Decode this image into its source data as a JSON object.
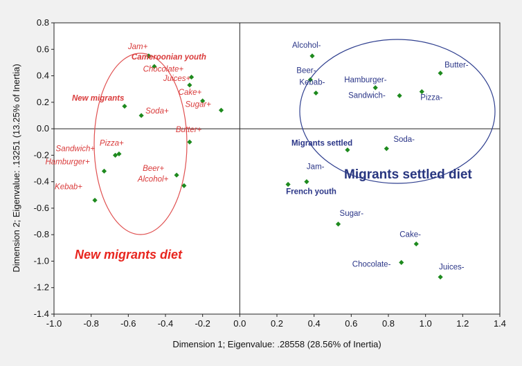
{
  "chart_data": {
    "type": "scatter",
    "xlabel": "Dimension 1; Eigenvalue: .28558 (28.56% of Inertia)",
    "ylabel": "Dimension 2; Eigenvalue: .13251 (13.25% of Inertia)",
    "xlim": [
      -1.0,
      1.4
    ],
    "ylim": [
      -1.4,
      0.8
    ],
    "xticks": [
      "-1.0",
      "-0.8",
      "-0.6",
      "-0.4",
      "-0.2",
      "0.0",
      "0.2",
      "0.4",
      "0.6",
      "0.8",
      "1.0",
      "1.2",
      "1.4"
    ],
    "yticks": [
      "0.8",
      "0.6",
      "0.4",
      "0.2",
      "0.0",
      "-0.2",
      "-0.4",
      "-0.6",
      "-0.8",
      "-1.0",
      "-1.2",
      "-1.4"
    ],
    "grid": false,
    "marker_color": "#1e8a1e",
    "new_color": "#d93a3a",
    "settled_color": "#2a3587",
    "points": [
      {
        "label": "Jam+",
        "x": -0.49,
        "y": 0.55,
        "group": "new",
        "bold": false
      },
      {
        "label": "Cameroonian youth",
        "x": -0.46,
        "y": 0.47,
        "group": "new",
        "bold": true
      },
      {
        "label": "Chocolate+",
        "x": -0.26,
        "y": 0.39,
        "group": "new",
        "bold": false
      },
      {
        "label": "New migrants",
        "x": -0.62,
        "y": 0.17,
        "group": "new",
        "bold": true
      },
      {
        "label": "Juices+",
        "x": -0.27,
        "y": 0.33,
        "group": "new",
        "bold": false
      },
      {
        "label": "Cake+",
        "x": -0.2,
        "y": 0.21,
        "group": "new",
        "bold": false
      },
      {
        "label": "Soda+",
        "x": -0.53,
        "y": 0.1,
        "group": "new",
        "bold": false
      },
      {
        "label": "Sugar+",
        "x": -0.1,
        "y": 0.14,
        "group": "new",
        "bold": false
      },
      {
        "label": "Butter+",
        "x": -0.27,
        "y": -0.1,
        "group": "new",
        "bold": false
      },
      {
        "label": "Pizza+",
        "x": -0.65,
        "y": -0.19,
        "group": "new",
        "bold": false
      },
      {
        "label": "Sandwich+",
        "x": -0.67,
        "y": -0.2,
        "group": "new",
        "bold": false
      },
      {
        "label": "Hamburger+",
        "x": -0.73,
        "y": -0.32,
        "group": "new",
        "bold": false
      },
      {
        "label": "Beer+",
        "x": -0.34,
        "y": -0.35,
        "group": "new",
        "bold": false
      },
      {
        "label": "Alcohol+",
        "x": -0.3,
        "y": -0.43,
        "group": "new",
        "bold": false
      },
      {
        "label": "Kebab+",
        "x": -0.78,
        "y": -0.54,
        "group": "new",
        "bold": false
      },
      {
        "label": "Alcohol-",
        "x": 0.39,
        "y": 0.55,
        "group": "settled",
        "bold": false
      },
      {
        "label": "Beer-",
        "x": 0.38,
        "y": 0.37,
        "group": "settled",
        "bold": false
      },
      {
        "label": "Kebab-",
        "x": 0.41,
        "y": 0.27,
        "group": "settled",
        "bold": false
      },
      {
        "label": "Hamburger-",
        "x": 0.73,
        "y": 0.31,
        "group": "settled",
        "bold": false
      },
      {
        "label": "Sandwich-",
        "x": 0.86,
        "y": 0.25,
        "group": "settled",
        "bold": false
      },
      {
        "label": "Pizza-",
        "x": 0.98,
        "y": 0.28,
        "group": "settled",
        "bold": false
      },
      {
        "label": "Butter-",
        "x": 1.08,
        "y": 0.42,
        "group": "settled",
        "bold": false
      },
      {
        "label": "Migrants settled",
        "x": 0.58,
        "y": -0.16,
        "group": "settled",
        "bold": true
      },
      {
        "label": "Soda-",
        "x": 0.79,
        "y": -0.15,
        "group": "settled",
        "bold": false
      },
      {
        "label": "Jam-",
        "x": 0.36,
        "y": -0.4,
        "group": "settled",
        "bold": false
      },
      {
        "label": "French youth",
        "x": 0.26,
        "y": -0.42,
        "group": "settled",
        "bold": true
      },
      {
        "label": "Sugar-",
        "x": 0.53,
        "y": -0.72,
        "group": "settled",
        "bold": false
      },
      {
        "label": "Cake-",
        "x": 0.95,
        "y": -0.87,
        "group": "settled",
        "bold": false
      },
      {
        "label": "Chocolate-",
        "x": 0.87,
        "y": -1.01,
        "group": "settled",
        "bold": false
      },
      {
        "label": "Juices-",
        "x": 1.08,
        "y": -1.12,
        "group": "settled",
        "bold": false
      }
    ],
    "group_labels": {
      "new": "New migrants diet",
      "settled": "Migrants settled diet"
    }
  }
}
